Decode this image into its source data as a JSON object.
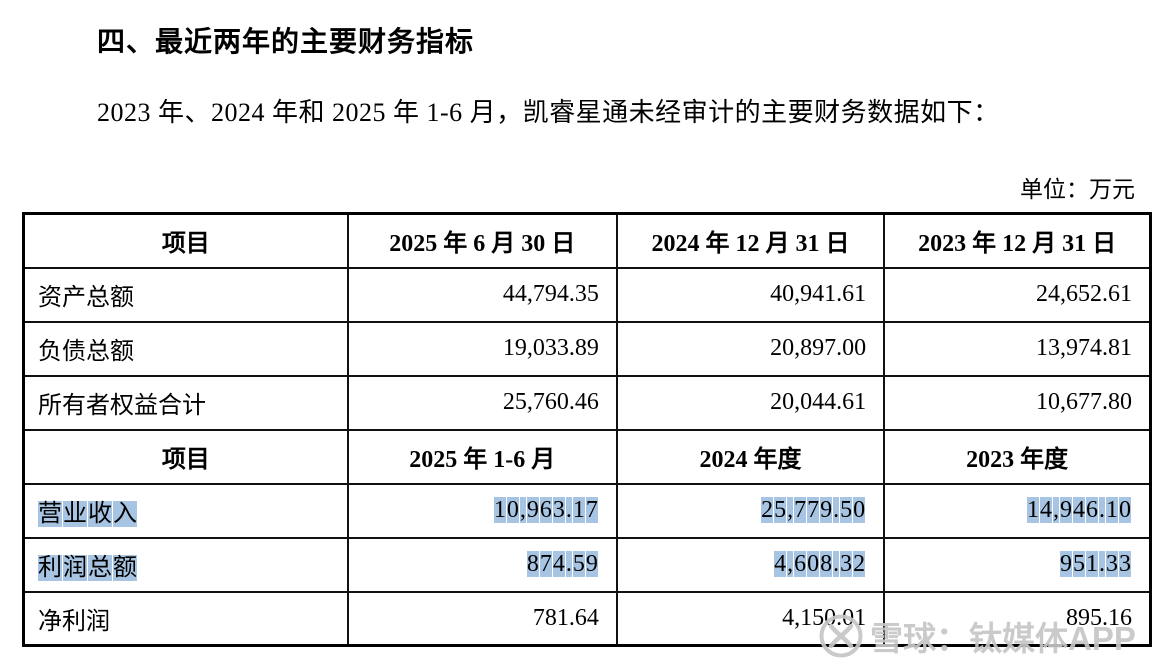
{
  "page": {
    "heading": "四、最近两年的主要财务指标",
    "intro": "2023 年、2024 年和 2025 年 1-6 月，凯睿星通未经审计的主要财务数据如下：",
    "unit_label": "单位：万元"
  },
  "table": {
    "balance_header": {
      "item": "项目",
      "col1": "2025 年 6 月 30 日",
      "col2": "2024 年 12 月 31 日",
      "col3": "2023 年 12 月 31 日"
    },
    "balance_rows": [
      {
        "label": "资产总额",
        "values": [
          "44,794.35",
          "40,941.61",
          "24,652.61"
        ],
        "highlight": false
      },
      {
        "label": "负债总额",
        "values": [
          "19,033.89",
          "20,897.00",
          "13,974.81"
        ],
        "highlight": false
      },
      {
        "label": "所有者权益合计",
        "values": [
          "25,760.46",
          "20,044.61",
          "10,677.80"
        ],
        "highlight": false
      }
    ],
    "income_header": {
      "item": "项目",
      "col1": "2025 年 1-6 月",
      "col2": "2024 年度",
      "col3": "2023 年度"
    },
    "income_rows": [
      {
        "label": "营业收入",
        "values": [
          "10,963.17",
          "25,779.50",
          "14,946.10"
        ],
        "highlight": true
      },
      {
        "label": "利润总额",
        "values": [
          "874.59",
          "4,608.32",
          "951.33"
        ],
        "highlight": true
      },
      {
        "label": "净利润",
        "values": [
          "781.64",
          "4,150.01",
          "895.16"
        ],
        "highlight": false
      }
    ]
  },
  "watermark": {
    "logo": "xueqiu-logo-icon",
    "text": "雪球：钛媒体APP"
  },
  "colors": {
    "highlight": "#a7c5e2",
    "watermark": "#c6c6c6",
    "border": "#000000",
    "text": "#000000"
  }
}
